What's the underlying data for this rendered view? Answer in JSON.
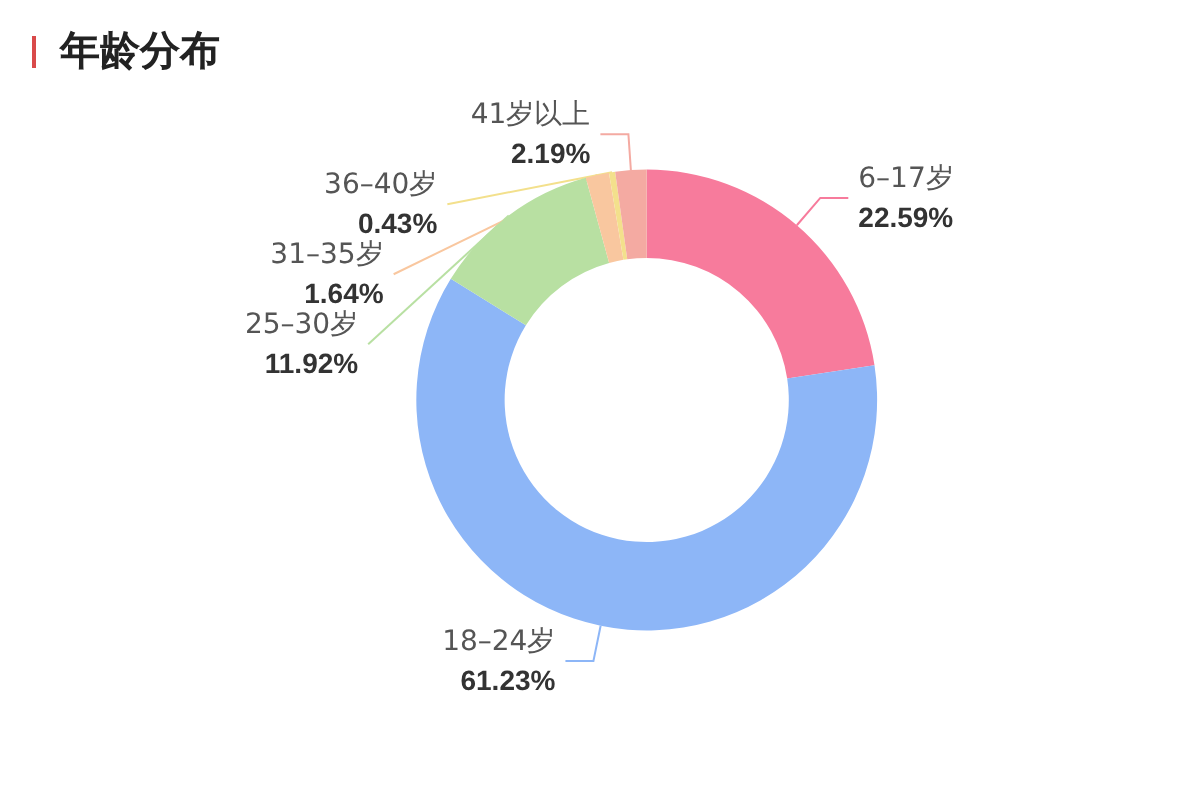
{
  "chart_data": {
    "type": "donut",
    "title": "年龄分布",
    "categories": [
      "6–17岁",
      "18–24岁",
      "25–30岁",
      "31–35岁",
      "36–40岁",
      "41岁以上"
    ],
    "values": [
      22.59,
      61.23,
      11.92,
      1.64,
      0.43,
      2.19
    ],
    "colors": [
      "#f77b9c",
      "#8db6f7",
      "#b8e0a2",
      "#f9c79f",
      "#f3e08c",
      "#f4aaa2"
    ],
    "value_labels": [
      "22.59%",
      "61.23%",
      "11.92%",
      "1.64%",
      "0.43%",
      "2.19%"
    ],
    "legend": false
  }
}
